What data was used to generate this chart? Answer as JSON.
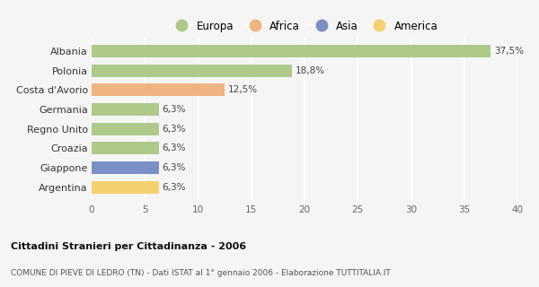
{
  "categories": [
    "Albania",
    "Polonia",
    "Costa d'Avorio",
    "Germania",
    "Regno Unito",
    "Croazia",
    "Giappone",
    "Argentina"
  ],
  "values": [
    37.5,
    18.8,
    12.5,
    6.3,
    6.3,
    6.3,
    6.3,
    6.3
  ],
  "labels": [
    "37,5%",
    "18,8%",
    "12,5%",
    "6,3%",
    "6,3%",
    "6,3%",
    "6,3%",
    "6,3%"
  ],
  "colors": [
    "#aec98a",
    "#aec98a",
    "#f0b482",
    "#aec98a",
    "#aec98a",
    "#aec98a",
    "#7a8fc4",
    "#f5d06e"
  ],
  "legend": [
    {
      "label": "Europa",
      "color": "#aec98a"
    },
    {
      "label": "Africa",
      "color": "#f0b482"
    },
    {
      "label": "Asia",
      "color": "#7a8fc4"
    },
    {
      "label": "America",
      "color": "#f5d06e"
    }
  ],
  "xlim": [
    0,
    40
  ],
  "xticks": [
    0,
    5,
    10,
    15,
    20,
    25,
    30,
    35,
    40
  ],
  "title_bold": "Cittadini Stranieri per Cittadinanza - 2006",
  "subtitle": "COMUNE DI PIEVE DI LEDRO (TN) - Dati ISTAT al 1° gennaio 2006 - Elaborazione TUTTITALIA.IT",
  "bg_color": "#f5f5f5",
  "grid_color": "#ffffff",
  "bar_height": 0.65
}
